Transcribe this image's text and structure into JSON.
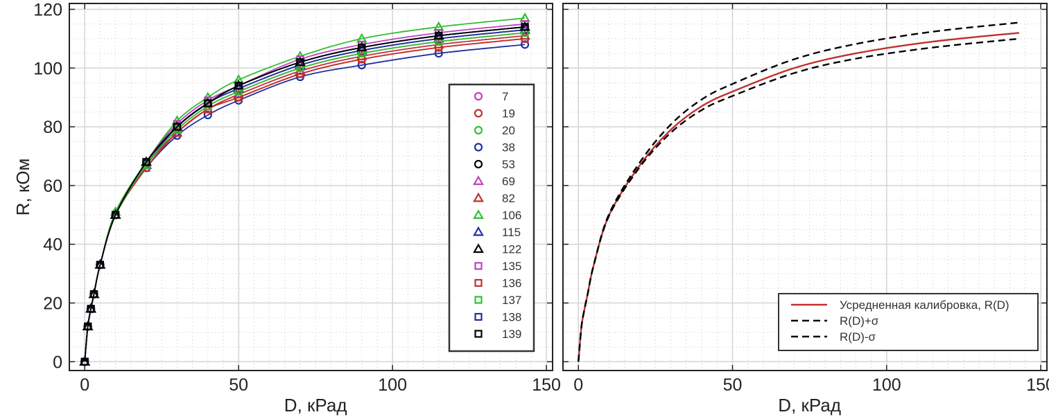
{
  "chart_data": [
    {
      "type": "scatter",
      "xlabel": "D, кРад",
      "ylabel": "R, кОм",
      "xlim": [
        -5,
        152
      ],
      "ylim": [
        -3,
        122
      ],
      "xticks": [
        0,
        50,
        100,
        150
      ],
      "yticks": [
        0,
        20,
        40,
        60,
        80,
        100,
        120
      ],
      "grid": true,
      "legend_position": "right",
      "x": [
        0,
        1,
        2,
        3,
        5,
        10,
        20,
        30,
        40,
        50,
        70,
        90,
        115,
        143
      ],
      "series": [
        {
          "name": "7",
          "marker": "circle",
          "color": "#c040c0",
          "values": [
            0,
            12,
            18,
            23,
            33,
            50,
            67,
            79,
            87,
            92,
            100,
            105,
            109,
            112
          ]
        },
        {
          "name": "19",
          "marker": "circle",
          "color": "#c03030",
          "values": [
            0,
            12,
            18,
            23,
            33,
            50,
            66,
            78,
            86,
            90,
            98,
            103,
            107,
            110
          ]
        },
        {
          "name": "20",
          "marker": "circle",
          "color": "#30c030",
          "values": [
            0,
            12,
            18,
            23,
            33,
            50,
            68,
            80,
            88,
            94,
            102,
            107,
            111,
            114
          ]
        },
        {
          "name": "38",
          "marker": "circle",
          "color": "#2030a0",
          "values": [
            0,
            12,
            18,
            23,
            33,
            50,
            66,
            77,
            84,
            89,
            97,
            101,
            105,
            108
          ]
        },
        {
          "name": "53",
          "marker": "circle",
          "color": "#000000",
          "values": [
            0,
            12,
            18,
            23,
            33,
            50,
            67,
            80,
            88,
            93,
            101,
            106,
            110,
            113
          ]
        },
        {
          "name": "69",
          "marker": "triangle",
          "color": "#c040c0",
          "values": [
            0,
            12,
            18,
            23,
            33,
            50,
            68,
            80,
            88,
            94,
            102,
            107,
            111,
            114
          ]
        },
        {
          "name": "82",
          "marker": "triangle",
          "color": "#c03030",
          "values": [
            0,
            12,
            18,
            23,
            33,
            50,
            67,
            78,
            86,
            91,
            99,
            104,
            108,
            111
          ]
        },
        {
          "name": "106",
          "marker": "triangle",
          "color": "#30c030",
          "values": [
            0,
            12,
            18,
            23,
            33,
            51,
            68,
            82,
            90,
            96,
            104,
            110,
            114,
            117
          ]
        },
        {
          "name": "115",
          "marker": "triangle",
          "color": "#2030a0",
          "values": [
            0,
            12,
            18,
            23,
            33,
            50,
            67,
            80,
            88,
            93,
            101,
            106,
            110,
            113
          ]
        },
        {
          "name": "122",
          "marker": "triangle",
          "color": "#000000",
          "values": [
            0,
            12,
            18,
            23,
            33,
            50,
            68,
            80,
            88,
            94,
            102,
            107,
            111,
            114
          ]
        },
        {
          "name": "135",
          "marker": "square",
          "color": "#c040c0",
          "values": [
            0,
            12,
            18,
            23,
            33,
            50,
            68,
            81,
            89,
            94,
            103,
            108,
            112,
            115
          ]
        },
        {
          "name": "136",
          "marker": "square",
          "color": "#c03030",
          "values": [
            0,
            12,
            18,
            23,
            33,
            50,
            66,
            78,
            86,
            90,
            98,
            103,
            107,
            110
          ]
        },
        {
          "name": "137",
          "marker": "square",
          "color": "#30c030",
          "values": [
            0,
            12,
            18,
            23,
            33,
            50,
            67,
            79,
            87,
            92,
            100,
            105,
            109,
            112
          ]
        },
        {
          "name": "138",
          "marker": "square",
          "color": "#2030a0",
          "values": [
            0,
            12,
            18,
            23,
            33,
            50,
            68,
            80,
            88,
            94,
            102,
            107,
            111,
            114
          ]
        },
        {
          "name": "139",
          "marker": "square",
          "color": "#000000",
          "values": [
            0,
            12,
            18,
            23,
            33,
            50,
            68,
            80,
            88,
            94,
            102,
            107,
            111,
            114
          ]
        }
      ]
    },
    {
      "type": "line",
      "xlabel": "D, кРад",
      "ylabel": "",
      "xlim": [
        -5,
        152
      ],
      "ylim": [
        -3,
        122
      ],
      "xticks": [
        0,
        50,
        100,
        150
      ],
      "yticks": [
        0,
        20,
        40,
        60,
        80,
        100,
        120
      ],
      "show_ytick_labels": false,
      "grid": true,
      "legend_position": "bottom-right",
      "x": [
        0,
        1,
        2,
        3,
        5,
        10,
        20,
        30,
        40,
        50,
        70,
        90,
        115,
        143
      ],
      "series": [
        {
          "name": "Усредненная калибровка, R(D)",
          "style": "solid",
          "color": "#c03030",
          "values": [
            0,
            12,
            18,
            23,
            33,
            50,
            67,
            79,
            87,
            92,
            100,
            105,
            109,
            112
          ]
        },
        {
          "name": "R(D)+σ",
          "style": "dashed",
          "color": "#000000",
          "values": [
            0,
            12,
            18,
            23,
            33,
            50.4,
            68,
            80.8,
            89.3,
            94.6,
            103,
            108.2,
            112.4,
            115.5
          ]
        },
        {
          "name": "R(D)-σ",
          "style": "dashed",
          "color": "#000000",
          "values": [
            0,
            12,
            18,
            23,
            33,
            49.8,
            66.4,
            78,
            85.7,
            90.5,
            98.3,
            103.2,
            107,
            110
          ]
        }
      ]
    }
  ]
}
